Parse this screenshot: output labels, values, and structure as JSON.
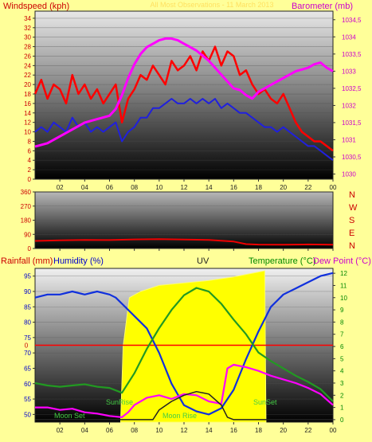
{
  "colors": {
    "background": "#ffff99",
    "wind_speed": "#ff0000",
    "wind_average": "#2020dd",
    "barometer": "#ff00ff",
    "wind_direction": "#ee0000",
    "rainfall": "#ff0000",
    "humidity": "#1030dd",
    "uv": "#ffff00",
    "temperature": "#229922",
    "dew_point": "#ff00ff",
    "moon_altitude": "#222222",
    "label_red": "#cc0000",
    "label_blue": "#0000cc",
    "label_magenta": "#cc00cc",
    "label_green": "#008800"
  },
  "header": {
    "left_label": "Windspeed (kph)",
    "center_label": "All Most Observations - 11 March 2013",
    "right_label": "Barometer (mb)"
  },
  "direction_labels": [
    "N",
    "W",
    "S",
    "E",
    "N"
  ],
  "bottom_header": {
    "rainfall": "Rainfall (mm)",
    "humidity": "Humidity (%)",
    "uv": "UV",
    "temperature": "Temperature (°C)",
    "dew_point": "Dew Point (°C)"
  },
  "annotations": {
    "sunrise": "SunRise",
    "sunset": "SunSet",
    "moon_set": "Moon Set",
    "moon_rise": "Moon Rise"
  },
  "x_ticks": [
    "02",
    "04",
    "06",
    "08",
    "10",
    "12",
    "14",
    "16",
    "18",
    "20",
    "22",
    "00"
  ],
  "chart_data": [
    {
      "type": "line",
      "x_unit": "hour",
      "x_range": [
        0,
        24
      ],
      "y_left": {
        "ticks": [
          "0",
          "2",
          "4",
          "6",
          "8",
          "10",
          "12",
          "14",
          "16",
          "18",
          "20",
          "22",
          "24",
          "26",
          "28",
          "30",
          "32",
          "34"
        ],
        "range": [
          0,
          35.5
        ]
      },
      "y_right": {
        "ticks": [
          "1030",
          "1030,5",
          "1031",
          "1031,5",
          "1032",
          "1032,5",
          "1033",
          "1033,5",
          "1034",
          "1034,5"
        ],
        "range": [
          1029.85,
          1034.75
        ]
      },
      "series": [
        {
          "key": "wind_speed",
          "axis": "left",
          "x": [
            0,
            0.5,
            1,
            1.5,
            2,
            2.5,
            3,
            3.5,
            4,
            4.5,
            5,
            5.5,
            6,
            6.5,
            7,
            7.5,
            8,
            8.5,
            9,
            9.5,
            10,
            10.5,
            11,
            11.5,
            12,
            12.5,
            13,
            13.5,
            14,
            14.5,
            15,
            15.5,
            16,
            16.5,
            17,
            17.5,
            18,
            18.5,
            19,
            19.5,
            20,
            20.5,
            21,
            21.5,
            22,
            22.5,
            23,
            23.5,
            24
          ],
          "values": [
            18,
            21,
            17,
            20,
            19,
            16,
            22,
            18,
            20,
            17,
            19,
            16,
            18,
            20,
            12,
            17,
            19,
            22,
            21,
            24,
            22,
            20,
            25,
            23,
            24,
            26,
            23,
            27,
            25,
            28,
            24,
            27,
            26,
            22,
            23,
            20,
            18,
            19,
            17,
            16,
            18,
            15,
            12,
            10,
            9,
            8,
            8,
            7,
            6
          ]
        },
        {
          "key": "wind_average",
          "axis": "left",
          "x": [
            0,
            0.5,
            1,
            1.5,
            2,
            2.5,
            3,
            3.5,
            4,
            4.5,
            5,
            5.5,
            6,
            6.5,
            7,
            7.5,
            8,
            8.5,
            9,
            9.5,
            10,
            10.5,
            11,
            11.5,
            12,
            12.5,
            13,
            13.5,
            14,
            14.5,
            15,
            15.5,
            16,
            16.5,
            17,
            17.5,
            18,
            18.5,
            19,
            19.5,
            20,
            20.5,
            21,
            21.5,
            22,
            22.5,
            23,
            23.5,
            24
          ],
          "values": [
            10,
            11,
            10,
            12,
            11,
            10,
            13,
            11,
            12,
            10,
            11,
            10,
            11,
            12,
            8,
            10,
            11,
            13,
            13,
            15,
            15,
            16,
            17,
            16,
            16,
            17,
            16,
            17,
            16,
            17,
            15,
            16,
            15,
            14,
            14,
            13,
            12,
            11,
            11,
            10,
            11,
            10,
            9,
            8,
            7,
            7,
            6,
            5,
            4
          ]
        },
        {
          "key": "barometer",
          "axis": "right",
          "x": [
            0,
            1,
            2,
            3,
            4,
            5,
            6,
            6.5,
            7,
            7.5,
            8,
            8.5,
            9,
            9.5,
            10,
            10.5,
            11,
            11.5,
            12,
            12.5,
            13,
            14,
            15,
            16,
            16.5,
            17,
            17.5,
            18,
            19,
            20,
            21,
            22,
            22.5,
            23,
            23.5,
            24
          ],
          "values": [
            1030.8,
            1030.9,
            1031.1,
            1031.3,
            1031.5,
            1031.6,
            1031.7,
            1031.9,
            1032.3,
            1032.8,
            1033.2,
            1033.5,
            1033.7,
            1033.8,
            1033.9,
            1033.95,
            1033.95,
            1033.9,
            1033.8,
            1033.7,
            1033.6,
            1033.3,
            1032.9,
            1032.5,
            1032.45,
            1032.3,
            1032.2,
            1032.4,
            1032.6,
            1032.8,
            1033.0,
            1033.1,
            1033.2,
            1033.25,
            1033.1,
            1033.0
          ]
        }
      ]
    },
    {
      "type": "line",
      "x_unit": "hour",
      "x_range": [
        0,
        24
      ],
      "y_left": {
        "ticks": [
          "0",
          "90",
          "180",
          "270",
          "360"
        ],
        "range": [
          0,
          360
        ]
      },
      "series": [
        {
          "key": "wind_direction",
          "x": [
            0,
            2,
            4,
            6,
            8,
            10,
            12,
            14,
            16,
            17,
            18,
            20,
            22,
            24
          ],
          "values": [
            48,
            52,
            55,
            54,
            58,
            60,
            57,
            55,
            44,
            28,
            25,
            24,
            26,
            24
          ]
        }
      ]
    },
    {
      "type": "line",
      "x_unit": "hour",
      "x_range": [
        0,
        24
      ],
      "y_left_rain": {
        "ticks": [
          "0"
        ],
        "range": [
          -1,
          1
        ]
      },
      "y_left_humidity": {
        "ticks": [
          "50",
          "55",
          "60",
          "65",
          "70",
          "75",
          "80",
          "85",
          "90",
          "95"
        ],
        "range": [
          47.5,
          97.5
        ]
      },
      "y_right": {
        "ticks": [
          "0",
          "1",
          "2",
          "3",
          "4",
          "5",
          "6",
          "7",
          "8",
          "9",
          "10",
          "11",
          "12"
        ],
        "range": [
          -0.2,
          12.4
        ]
      },
      "series": [
        {
          "key": "rainfall",
          "axis": "rain",
          "x": [
            0,
            24
          ],
          "values": [
            0,
            0
          ]
        },
        {
          "key": "uv",
          "axis": "right",
          "kind": "area",
          "x": [
            6.9,
            7.1,
            7.6,
            8.5,
            10,
            12,
            14,
            16,
            18,
            18.5,
            18.6
          ],
          "values": [
            0,
            6,
            10,
            10.5,
            11,
            11.2,
            11.4,
            11.7,
            12.1,
            12.2,
            0
          ]
        },
        {
          "key": "humidity",
          "axis": "humidity",
          "x": [
            0,
            1,
            2,
            3,
            4,
            5,
            6,
            6.5,
            7,
            8,
            9,
            10,
            11,
            12,
            12.5,
            13,
            14,
            15,
            16,
            17,
            18,
            19,
            20,
            21,
            22,
            23,
            24
          ],
          "values": [
            88,
            89,
            89,
            90,
            89,
            90,
            89,
            88,
            86,
            82,
            78,
            70,
            60,
            53,
            52,
            51,
            50,
            52,
            58,
            68,
            77,
            85,
            89,
            91,
            93,
            95,
            96
          ]
        },
        {
          "key": "temperature",
          "axis": "right",
          "x": [
            0,
            1,
            2,
            3,
            4,
            5,
            6,
            7,
            8,
            9,
            10,
            11,
            12,
            13,
            14,
            15,
            16,
            17,
            18,
            19,
            20,
            21,
            22,
            23,
            24
          ],
          "values": [
            3.0,
            2.8,
            2.7,
            2.8,
            2.9,
            2.7,
            2.6,
            2.2,
            3.8,
            5.8,
            7.5,
            9.0,
            10.2,
            10.8,
            10.5,
            9.5,
            8.2,
            7.0,
            5.5,
            4.8,
            4.2,
            3.6,
            3.1,
            2.5,
            1.5
          ]
        },
        {
          "key": "dew_point",
          "axis": "right",
          "x": [
            0,
            1,
            2,
            3,
            4,
            5,
            6,
            7,
            7.5,
            8,
            9,
            10,
            11,
            12,
            13,
            14,
            15,
            15.5,
            16,
            17,
            18,
            19,
            20,
            21,
            22,
            23,
            24
          ],
          "values": [
            1.0,
            1.0,
            0.8,
            0.9,
            0.6,
            0.5,
            0.3,
            0.2,
            0.6,
            1.2,
            1.8,
            2.0,
            1.7,
            2.1,
            2.0,
            1.5,
            1.3,
            4.2,
            4.5,
            4.3,
            4.0,
            3.6,
            3.3,
            3.0,
            2.6,
            2.1,
            1.2
          ]
        },
        {
          "key": "moon_altitude",
          "axis": "right",
          "x": [
            0,
            1,
            2,
            3,
            4,
            5,
            6,
            7,
            8,
            9,
            9.5,
            10,
            11,
            12,
            13,
            14,
            15,
            15.5,
            16,
            17,
            18,
            19,
            20,
            21,
            22,
            23,
            24
          ],
          "values": [
            0,
            0,
            0,
            0,
            0,
            0,
            0,
            0,
            0,
            0,
            0,
            0.8,
            1.5,
            2.0,
            2.3,
            2.1,
            1.2,
            0.2,
            0,
            0,
            0,
            0,
            0,
            0,
            0,
            0,
            0
          ]
        }
      ]
    }
  ]
}
